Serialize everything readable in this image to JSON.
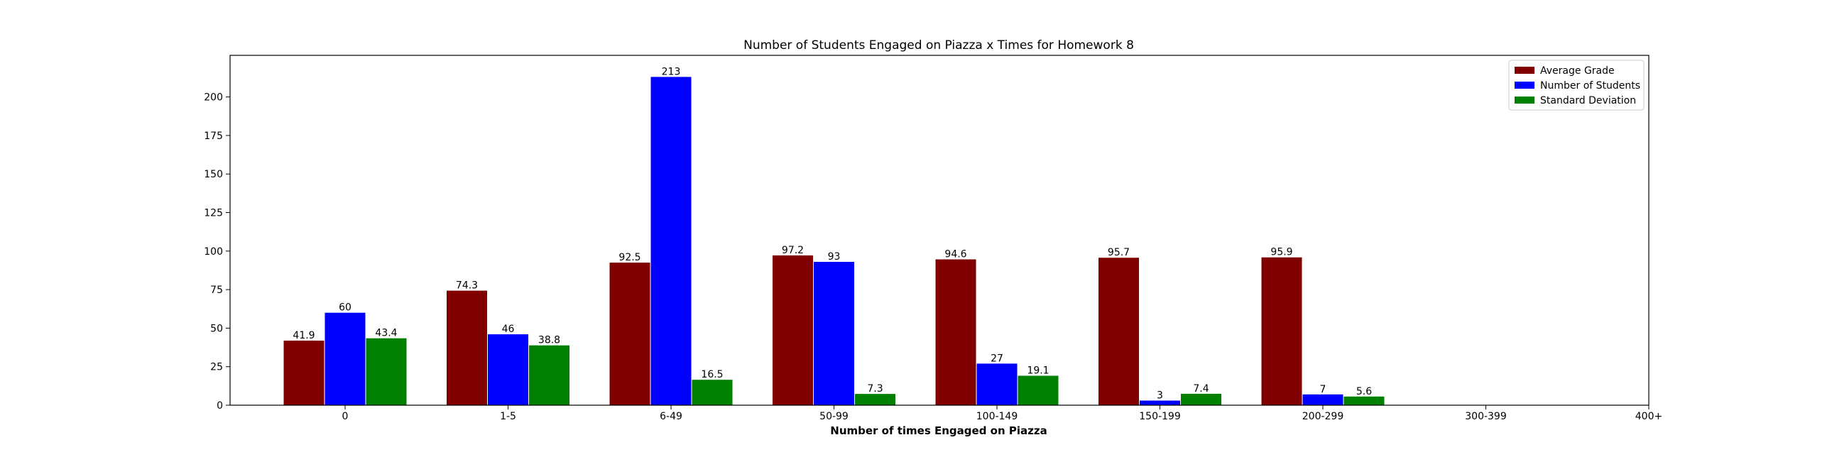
{
  "chart_data": {
    "type": "bar",
    "title": "Number of Students Engaged on Piazza x Times for Homework 8",
    "xlabel": "Number of times Engaged on Piazza",
    "ylabel": "",
    "categories": [
      "0",
      "1-5",
      "6-49",
      "50-99",
      "100-149",
      "150-199",
      "200-299",
      "300-399",
      "400+"
    ],
    "ylim": [
      0,
      227
    ],
    "yticks": [
      0,
      25,
      50,
      75,
      100,
      125,
      150,
      175,
      200
    ],
    "legend_position": "top-right",
    "grid": false,
    "series": [
      {
        "name": "Average Grade",
        "color": "#800000",
        "values": [
          41.9,
          74.3,
          92.5,
          97.2,
          94.6,
          95.7,
          95.9,
          null,
          null
        ]
      },
      {
        "name": "Number of Students",
        "color": "#0000ff",
        "values": [
          60,
          46,
          213,
          93,
          27,
          3,
          7,
          null,
          null
        ]
      },
      {
        "name": "Standard Deviation",
        "color": "#008000",
        "values": [
          43.4,
          38.8,
          16.5,
          7.3,
          19.1,
          7.4,
          5.6,
          null,
          null
        ]
      }
    ]
  }
}
